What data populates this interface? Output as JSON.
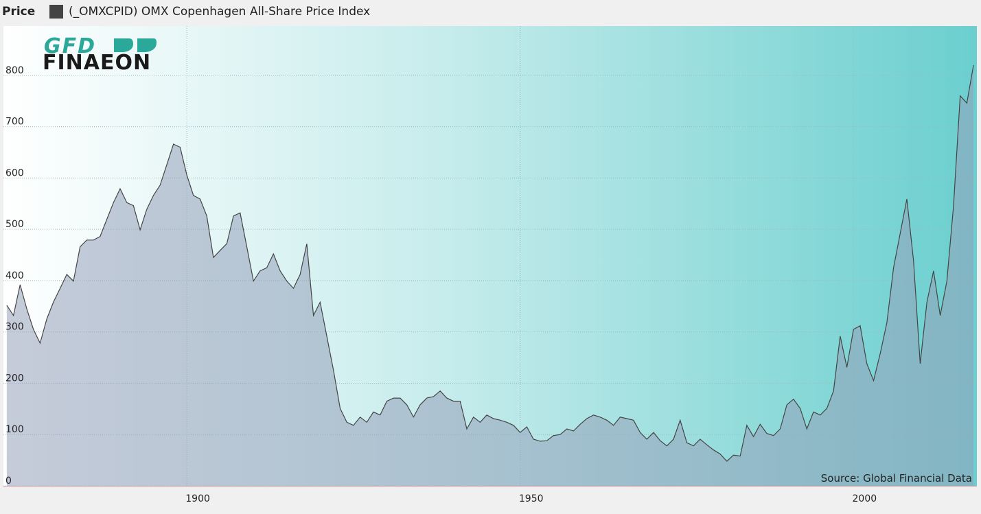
{
  "chart_data": {
    "type": "area",
    "title": "Price",
    "source": "Source: Global Financial Data",
    "logo": {
      "top": "GFD",
      "bottom": "FINAEON"
    },
    "x": [
      1873,
      1874,
      1875,
      1876,
      1877,
      1878,
      1879,
      1880,
      1881,
      1882,
      1883,
      1884,
      1885,
      1886,
      1887,
      1888,
      1889,
      1890,
      1891,
      1892,
      1893,
      1894,
      1895,
      1896,
      1897,
      1898,
      1899,
      1900,
      1901,
      1902,
      1903,
      1904,
      1905,
      1906,
      1907,
      1908,
      1909,
      1910,
      1911,
      1912,
      1913,
      1914,
      1915,
      1916,
      1917,
      1918,
      1919,
      1920,
      1921,
      1922,
      1923,
      1924,
      1925,
      1926,
      1927,
      1928,
      1929,
      1930,
      1931,
      1932,
      1933,
      1934,
      1935,
      1936,
      1937,
      1938,
      1939,
      1940,
      1941,
      1942,
      1943,
      1944,
      1945,
      1946,
      1947,
      1948,
      1949,
      1950,
      1951,
      1952,
      1953,
      1954,
      1955,
      1956,
      1957,
      1958,
      1959,
      1960,
      1961,
      1962,
      1963,
      1964,
      1965,
      1966,
      1967,
      1968,
      1969,
      1970,
      1971,
      1972,
      1973,
      1974,
      1975,
      1976,
      1977,
      1978,
      1979,
      1980,
      1981,
      1982,
      1983,
      1984,
      1985,
      1986,
      1987,
      1988,
      1989,
      1990,
      1991,
      1992,
      1993,
      1994,
      1995,
      1996,
      1997,
      1998,
      1999,
      2000,
      2001,
      2002,
      2003,
      2004,
      2005,
      2006,
      2007,
      2008,
      2009,
      2010,
      2011,
      2012,
      2013,
      2014,
      2015,
      2016,
      2017,
      2018
    ],
    "series": [
      {
        "name": "(_OMXCPID) OMX Copenhagen All-Share Price Index",
        "color": "#444444",
        "values": [
          352,
          332,
          392,
          345,
          305,
          278,
          325,
          358,
          385,
          412,
          399,
          466,
          479,
          479,
          486,
          519,
          552,
          579,
          552,
          546,
          499,
          539,
          566,
          586,
          626,
          666,
          660,
          606,
          566,
          559,
          526,
          445,
          459,
          472,
          526,
          532,
          466,
          399,
          419,
          425,
          452,
          419,
          399,
          385,
          412,
          472,
          332,
          358,
          292,
          225,
          151,
          124,
          118,
          134,
          124,
          144,
          138,
          165,
          171,
          171,
          158,
          134,
          158,
          171,
          174,
          185,
          171,
          165,
          165,
          111,
          134,
          124,
          138,
          131,
          128,
          124,
          118,
          104,
          115,
          91,
          87,
          88,
          98,
          100,
          111,
          107,
          120,
          131,
          138,
          134,
          128,
          118,
          134,
          131,
          128,
          104,
          91,
          104,
          88,
          78,
          91,
          128,
          84,
          78,
          91,
          80,
          70,
          62,
          48,
          60,
          58,
          118,
          96,
          120,
          102,
          98,
          111,
          158,
          169,
          151,
          111,
          144,
          138,
          151,
          185,
          292,
          231,
          305,
          312,
          238,
          205,
          258,
          318,
          425,
          492,
          559,
          439,
          238,
          358,
          419,
          332,
          399,
          546,
          760,
          746,
          820
        ]
      }
    ],
    "xlim": [
      1872.5,
      2018.5
    ],
    "xticks": [
      1900,
      1950,
      2000
    ],
    "ylim": [
      0,
      896
    ],
    "yticks": [
      0,
      100,
      200,
      300,
      400,
      500,
      600,
      700,
      800
    ],
    "grid": true
  }
}
